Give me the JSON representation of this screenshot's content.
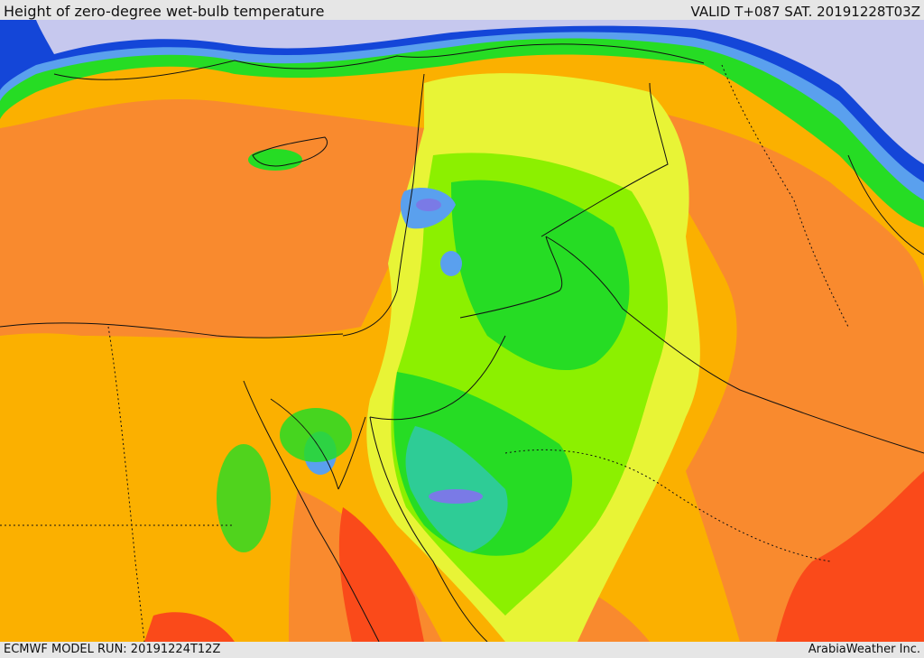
{
  "header": {
    "title": "Height of zero-degree wet-bulb temperature",
    "valid": "VALID T+087 SAT. 20191228T03Z"
  },
  "footer": {
    "model_run": "ECMWF MODEL RUN: 20191224T12Z",
    "credit": "ArabiaWeather Inc."
  },
  "palette": {
    "very_high": "#fa4a1a",
    "high": "#f98a2e",
    "upper": "#fbb000",
    "mid_yellow": "#e8f436",
    "lime": "#8cf000",
    "green": "#26dc24",
    "teal": "#2ecc96",
    "blue": "#5aa0ee",
    "violet": "#7a7ae6",
    "deep_blue": "#1446d8",
    "low_lavender": "#c6c8ee"
  }
}
